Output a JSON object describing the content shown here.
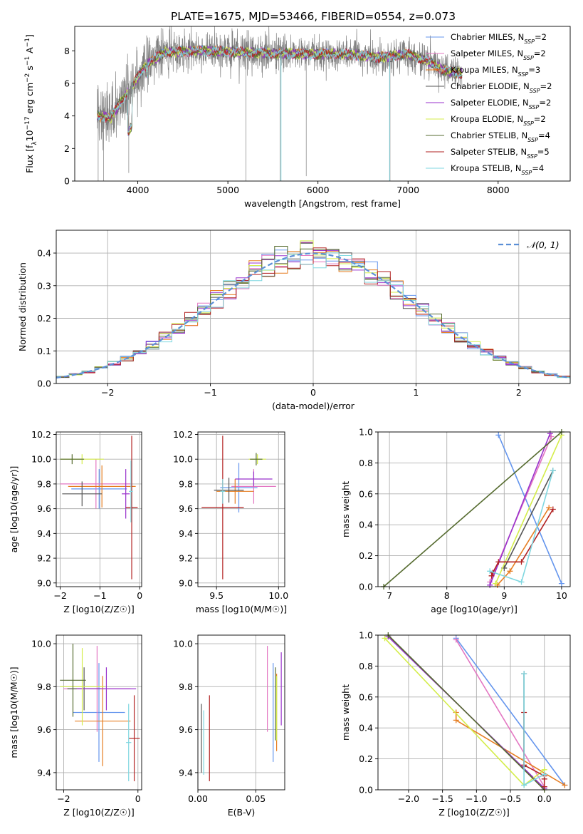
{
  "title": "PLATE=1675, MJD=53466, FIBERID=0554, z=0.073",
  "colors": {
    "grid": "#b0b0b0",
    "spectrum": "#808080",
    "series": [
      "#6495ed",
      "#e377c2",
      "#e67e22",
      "#555555",
      "#9932cc",
      "#d4ed4a",
      "#556b2f",
      "#b22222",
      "#7fd7e0"
    ]
  },
  "legend_spectrum": [
    {
      "label": "Chabrier MILES, N",
      "sub": "SSP",
      "suffix": "=2"
    },
    {
      "label": "Salpeter MILES, N",
      "sub": "SSP",
      "suffix": "=2"
    },
    {
      "label": "Kroupa MILES, N",
      "sub": "SSP",
      "suffix": "=3"
    },
    {
      "label": "Chabrier ELODIE, N",
      "sub": "SSP",
      "suffix": "=2"
    },
    {
      "label": "Salpeter ELODIE, N",
      "sub": "SSP",
      "suffix": "=2"
    },
    {
      "label": "Kroupa ELODIE, N",
      "sub": "SSP",
      "suffix": "=2"
    },
    {
      "label": "Chabrier STELIB, N",
      "sub": "SSP",
      "suffix": "=4"
    },
    {
      "label": "Salpeter STELIB, N",
      "sub": "SSP",
      "suffix": "=5"
    },
    {
      "label": "Kroupa STELIB, N",
      "sub": "SSP",
      "suffix": "=4"
    }
  ],
  "legend_normal": "𝒩(0, 1)",
  "chart_data": [
    {
      "type": "line",
      "id": "spectrum",
      "xlabel": "wavelength [Angstrom, rest frame]",
      "ylabel": "Flux [f_λ 10^-17 erg cm^-2 s^-1 A^-1]",
      "xlim": [
        3300,
        8800
      ],
      "ylim": [
        0,
        9.5
      ],
      "xticks": [
        4000,
        5000,
        6000,
        7000,
        8000
      ],
      "yticks": [
        0,
        2,
        4,
        6,
        8
      ],
      "data_coverage": [
        3550,
        7600
      ],
      "continuum": {
        "x": [
          3550,
          3700,
          3900,
          4100,
          4300,
          4700,
          5200,
          5800,
          6300,
          6700,
          7000,
          7200,
          7400,
          7600
        ],
        "y": [
          4.0,
          3.9,
          5.6,
          7.2,
          7.9,
          8.0,
          7.9,
          7.8,
          7.8,
          7.6,
          7.8,
          7.4,
          6.8,
          6.6
        ]
      }
    },
    {
      "type": "bar",
      "id": "residuals",
      "xlabel": "(data-model)/error",
      "ylabel": "Normed distribution",
      "xlim": [
        -2.5,
        2.5
      ],
      "ylim": [
        0,
        0.47
      ],
      "xticks": [
        -2,
        -1,
        0,
        1,
        2
      ],
      "yticks": [
        0.0,
        0.1,
        0.2,
        0.3,
        0.4
      ],
      "bins": 40,
      "normal": {
        "mean": 0,
        "sigma": 1
      }
    },
    {
      "type": "scatter",
      "id": "age-vs-Z",
      "xlabel": "Z [log10(Z/Z☉)]",
      "ylabel": "age [log10(age/yr)]",
      "xlim": [
        -2.1,
        0.05
      ],
      "ylim": [
        8.97,
        10.22
      ],
      "xticks": [
        -2,
        -1,
        0
      ],
      "yticks": [
        9.0,
        9.2,
        9.4,
        9.6,
        9.8,
        10.0,
        10.2
      ],
      "points": [
        {
          "x": -1.02,
          "y": 9.76,
          "xe": 0.7,
          "ye": 0.16
        },
        {
          "x": -1.1,
          "y": 9.8,
          "xe": 0.9,
          "ye": 0.2
        },
        {
          "x": -0.95,
          "y": 9.78,
          "xe": 0.85,
          "ye": 0.17
        },
        {
          "x": -1.45,
          "y": 9.72,
          "xe": 0.5,
          "ye": 0.1
        },
        {
          "x": -0.35,
          "y": 9.72,
          "xe": 0.1,
          "ye": 0.2
        },
        {
          "x": -1.45,
          "y": 10.0,
          "xe": 0.55,
          "ye": 0.04
        },
        {
          "x": -1.7,
          "y": 10.0,
          "xe": 0.3,
          "ye": 0.04
        },
        {
          "x": -0.2,
          "y": 9.61,
          "xe": 0.15,
          "ye": 0.58
        },
        {
          "x": -0.22,
          "y": 9.74,
          "xe": 0.05,
          "ye": 0.25
        }
      ]
    },
    {
      "type": "scatter",
      "id": "age-vs-mass",
      "xlabel": "mass [log10(M/M☉)]",
      "ylabel": "",
      "xlim": [
        9.35,
        10.05
      ],
      "ylim": [
        8.97,
        10.22
      ],
      "xticks": [
        9.5,
        10.0
      ],
      "yticks": [
        9.0,
        9.2,
        9.4,
        9.6,
        9.8,
        10.0,
        10.2
      ],
      "points": [
        {
          "x": 9.68,
          "y": 9.77,
          "xe": 0.15,
          "ye": 0.2
        },
        {
          "x": 9.8,
          "y": 9.78,
          "xe": 0.18,
          "ye": 0.14
        },
        {
          "x": 9.65,
          "y": 9.74,
          "xe": 0.15,
          "ye": 0.1
        },
        {
          "x": 9.6,
          "y": 9.75,
          "xe": 0.12,
          "ye": 0.1
        },
        {
          "x": 9.8,
          "y": 9.84,
          "xe": 0.15,
          "ye": 0.06
        },
        {
          "x": 9.83,
          "y": 10.0,
          "xe": 0.07,
          "ye": 0.04
        },
        {
          "x": 9.82,
          "y": 10.0,
          "xe": 0.05,
          "ye": 0.05
        },
        {
          "x": 9.55,
          "y": 9.61,
          "xe": 0.17,
          "ye": 0.58
        },
        {
          "x": 9.55,
          "y": 9.74,
          "xe": 0.02,
          "ye": 0.1
        }
      ]
    },
    {
      "type": "line",
      "id": "massweight-vs-age",
      "xlabel": "age [log10(age/yr)]",
      "ylabel": "mass weight",
      "xlim": [
        6.8,
        10.15
      ],
      "ylim": [
        0,
        1.0
      ],
      "xticks": [
        7,
        8,
        9,
        10
      ],
      "yticks": [
        0.0,
        0.2,
        0.4,
        0.6,
        0.8,
        1.0
      ],
      "series": [
        {
          "x": [
            10.0,
            8.9
          ],
          "y": [
            0.02,
            0.98
          ]
        },
        {
          "x": [
            9.82,
            8.75
          ],
          "y": [
            0.97,
            0.03
          ]
        },
        {
          "x": [
            9.78,
            9.1,
            8.88
          ],
          "y": [
            0.51,
            0.1,
            0.01
          ]
        },
        {
          "x": [
            9.85,
            9.0
          ],
          "y": [
            0.75,
            0.12
          ]
        },
        {
          "x": [
            9.8,
            8.75
          ],
          "y": [
            0.99,
            0.01
          ]
        },
        {
          "x": [
            10.0,
            8.85
          ],
          "y": [
            0.98,
            0.02
          ]
        },
        {
          "x": [
            10.0,
            6.9
          ],
          "y": [
            1.0,
            0.0
          ]
        },
        {
          "x": [
            9.85,
            9.3,
            8.9,
            8.8,
            8.78
          ],
          "y": [
            0.5,
            0.16,
            0.16,
            0.09,
            0.07
          ]
        },
        {
          "x": [
            9.85,
            9.3,
            8.75
          ],
          "y": [
            0.75,
            0.03,
            0.1
          ]
        }
      ]
    },
    {
      "type": "scatter",
      "id": "mass-vs-Z",
      "xlabel": "Z [log10(Z/Z☉)]",
      "ylabel": "mass [log10(M/M☉)]",
      "xlim": [
        -2.2,
        0.1
      ],
      "ylim": [
        9.32,
        10.04
      ],
      "xticks": [
        -2,
        0
      ],
      "yticks": [
        9.4,
        9.6,
        9.8,
        10.0
      ],
      "points": [
        {
          "x": -1.05,
          "y": 9.68,
          "xe": 0.7,
          "ye": 0.23
        },
        {
          "x": -1.1,
          "y": 9.79,
          "xe": 0.9,
          "ye": 0.2
        },
        {
          "x": -0.95,
          "y": 9.64,
          "xe": 0.75,
          "ye": 0.21
        },
        {
          "x": -1.45,
          "y": 9.79,
          "xe": 0.45,
          "ye": 0.1
        },
        {
          "x": -0.85,
          "y": 9.79,
          "xe": 0.8,
          "ye": 0.1
        },
        {
          "x": -1.5,
          "y": 9.8,
          "xe": 0.6,
          "ye": 0.18
        },
        {
          "x": -1.75,
          "y": 9.83,
          "xe": 0.35,
          "ye": 0.17
        },
        {
          "x": -0.1,
          "y": 9.56,
          "xe": 0.15,
          "ye": 0.2
        },
        {
          "x": -0.25,
          "y": 9.54,
          "xe": 0.07,
          "ye": 0.18
        }
      ]
    },
    {
      "type": "scatter",
      "id": "mass-vs-ebv",
      "xlabel": "E(B-V)",
      "ylabel": "",
      "xlim": [
        0.0,
        0.075
      ],
      "ylim": [
        9.32,
        10.04
      ],
      "xticks": [
        0.0,
        0.05
      ],
      "yticks": [
        9.4,
        9.6,
        9.8,
        10.0
      ],
      "points": [
        {
          "x": 0.065,
          "y": 9.68,
          "ye": 0.23
        },
        {
          "x": 0.06,
          "y": 9.79,
          "ye": 0.2
        },
        {
          "x": 0.068,
          "y": 9.68,
          "ye": 0.18
        },
        {
          "x": 0.003,
          "y": 9.56,
          "ye": 0.16
        },
        {
          "x": 0.072,
          "y": 9.79,
          "ye": 0.17
        },
        {
          "x": 0.068,
          "y": 9.7,
          "ye": 0.15
        },
        {
          "x": 0.067,
          "y": 9.72,
          "ye": 0.17
        },
        {
          "x": 0.01,
          "y": 9.56,
          "ye": 0.2
        },
        {
          "x": 0.005,
          "y": 9.54,
          "ye": 0.15
        }
      ]
    },
    {
      "type": "line",
      "id": "massweight-vs-Z",
      "xlabel": "Z [log10(Z/Z☉)]",
      "ylabel": "mass weight",
      "xlim": [
        -2.45,
        0.38
      ],
      "ylim": [
        0,
        1.0
      ],
      "xticks": [
        -2.0,
        -1.5,
        -1.0,
        -0.5,
        0.0
      ],
      "yticks": [
        0.0,
        0.2,
        0.4,
        0.6,
        0.8,
        1.0
      ],
      "series": [
        {
          "x": [
            -1.3,
            0.3
          ],
          "y": [
            0.98,
            0.03
          ]
        },
        {
          "x": [
            -1.3,
            0.0
          ],
          "y": [
            0.97,
            0.02
          ]
        },
        {
          "x": [
            -1.3,
            -1.3,
            0.3
          ],
          "y": [
            0.5,
            0.45,
            0.03
          ]
        },
        {
          "x": [
            -0.3,
            -0.3
          ],
          "y": [
            0.75,
            0.15
          ]
        },
        {
          "x": [
            -2.3,
            0.0
          ],
          "y": [
            0.99,
            0.01
          ]
        },
        {
          "x": [
            -2.35,
            -0.3,
            0.0
          ],
          "y": [
            0.98,
            0.03,
            0.13
          ]
        },
        {
          "x": [
            -2.3,
            0.0
          ],
          "y": [
            1.0,
            0.0
          ]
        },
        {
          "x": [
            -0.3,
            -0.3,
            0.0,
            0.0,
            0.0
          ],
          "y": [
            0.5,
            0.16,
            0.09,
            0.07,
            0.02
          ]
        },
        {
          "x": [
            -0.3,
            -0.3,
            0.0
          ],
          "y": [
            0.75,
            0.03,
            0.1
          ]
        }
      ]
    }
  ]
}
